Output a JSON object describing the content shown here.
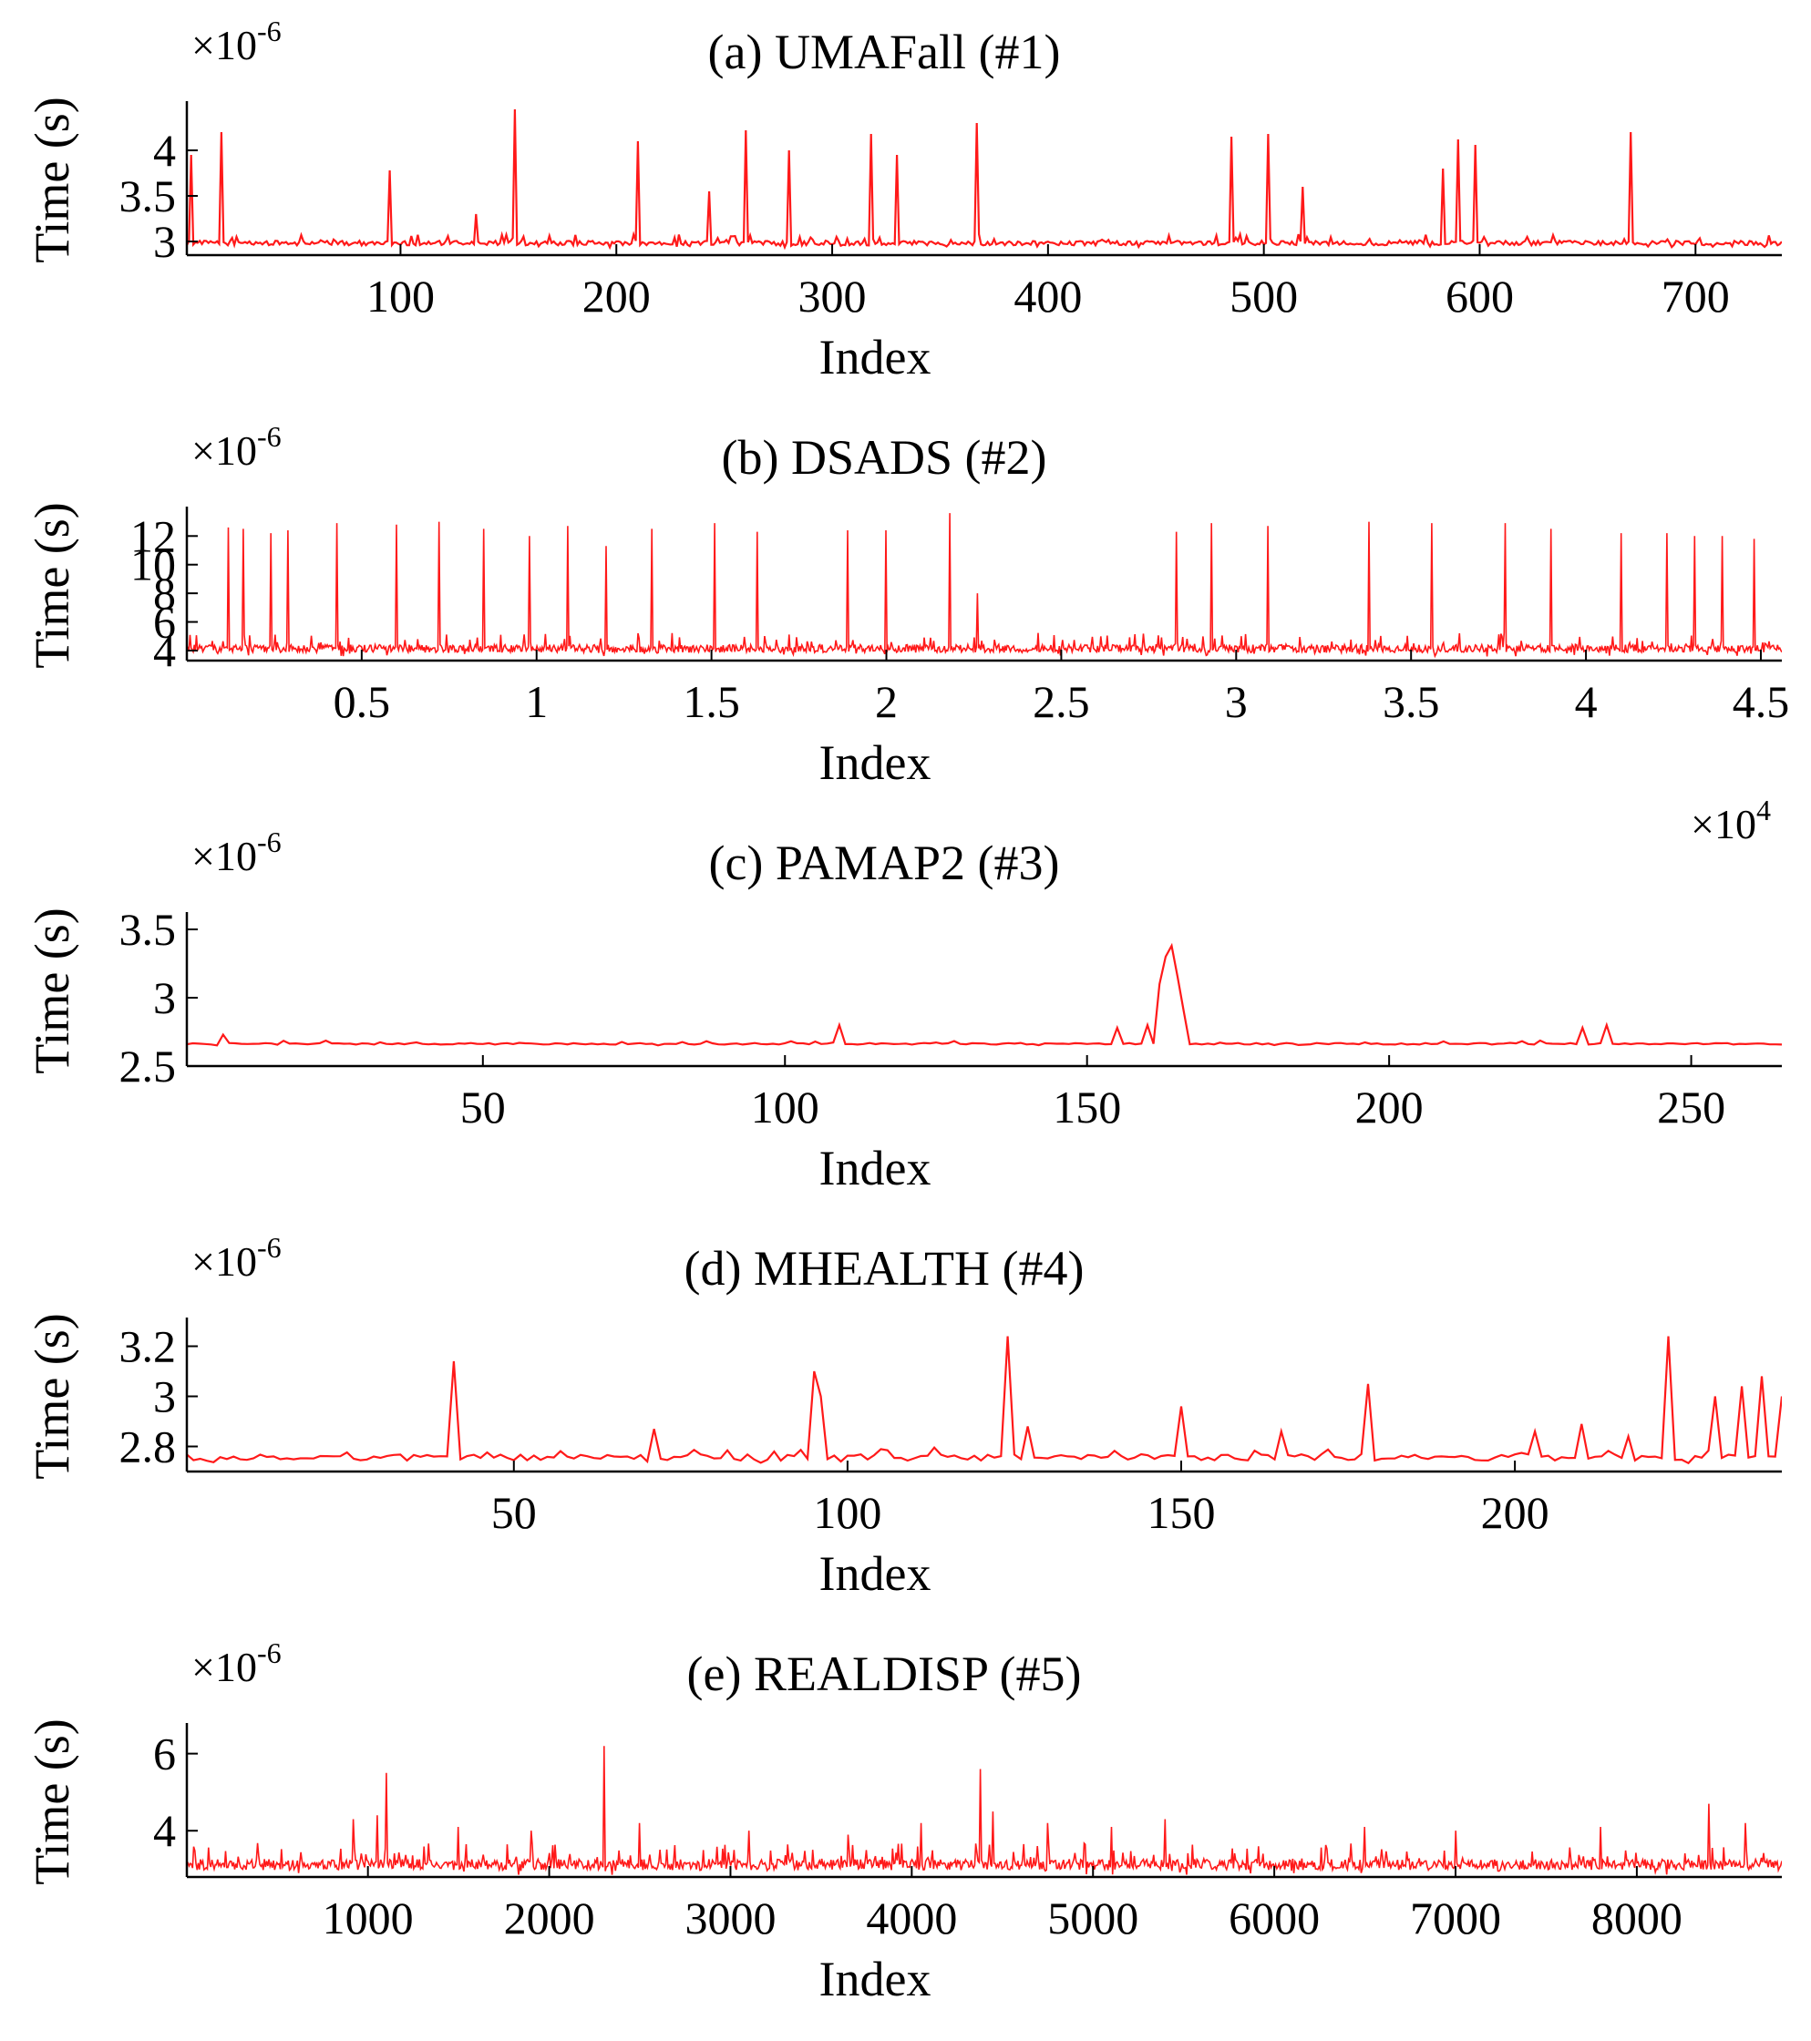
{
  "figure": {
    "series_color": "#ff0000",
    "axis_color": "#000000",
    "background": "#ffffff"
  },
  "chart_data": [
    {
      "type": "line",
      "title": "(a) UMAFall (#1)",
      "xlabel": "Index",
      "ylabel": "Time (s)",
      "y_exponent_label": "×10",
      "y_exponent": "-6",
      "x_exponent_label": null,
      "x_exponent": null,
      "xlim": [
        1,
        740
      ],
      "ylim": [
        2.85,
        4.5
      ],
      "xticks": [
        100,
        200,
        300,
        400,
        500,
        600,
        700
      ],
      "xtick_labels": [
        "100",
        "200",
        "300",
        "400",
        "500",
        "600",
        "700"
      ],
      "yticks": [
        3,
        3.5,
        4
      ],
      "ytick_labels": [
        "3",
        "3.5",
        "4"
      ],
      "n_points": 740,
      "baseline": 2.97,
      "noise": 0.05,
      "spikes": [
        [
          3,
          3.95
        ],
        [
          17,
          4.2
        ],
        [
          95,
          3.78
        ],
        [
          135,
          3.3
        ],
        [
          153,
          4.45
        ],
        [
          210,
          4.1
        ],
        [
          243,
          3.55
        ],
        [
          260,
          4.22
        ],
        [
          280,
          4.0
        ],
        [
          318,
          4.18
        ],
        [
          330,
          3.95
        ],
        [
          367,
          4.3
        ],
        [
          485,
          4.15
        ],
        [
          502,
          4.18
        ],
        [
          518,
          3.6
        ],
        [
          583,
          3.8
        ],
        [
          590,
          4.12
        ],
        [
          598,
          4.06
        ],
        [
          670,
          4.2
        ]
      ]
    },
    {
      "type": "line",
      "title": "(b) DSADS (#2)",
      "xlabel": "Index",
      "ylabel": "Time (s)",
      "y_exponent_label": "×10",
      "y_exponent": "-6",
      "x_exponent_label": "×10",
      "x_exponent": "4",
      "xlim": [
        1,
        45600
      ],
      "ylim": [
        3.3,
        13.8
      ],
      "xticks": [
        5000,
        10000,
        15000,
        20000,
        25000,
        30000,
        35000,
        40000,
        45000
      ],
      "xtick_labels": [
        "0.5",
        "1",
        "1.5",
        "2",
        "2.5",
        "3",
        "3.5",
        "4",
        "4.5"
      ],
      "yticks": [
        4,
        6,
        8,
        10,
        12
      ],
      "ytick_labels": [
        "4",
        "6",
        "8",
        "10",
        "12"
      ],
      "n_points": 1500,
      "baseline": 4.0,
      "noise": 0.55,
      "spikes": [
        [
          1200,
          12.6
        ],
        [
          1600,
          12.5
        ],
        [
          2400,
          12.2
        ],
        [
          4300,
          12.9
        ],
        [
          6000,
          12.8
        ],
        [
          7200,
          13.0
        ],
        [
          8500,
          12.5
        ],
        [
          9800,
          12.0
        ],
        [
          12000,
          11.3
        ],
        [
          13300,
          12.5
        ],
        [
          15100,
          12.9
        ],
        [
          16300,
          12.3
        ],
        [
          18900,
          12.4
        ],
        [
          20000,
          12.4
        ],
        [
          21800,
          13.6
        ],
        [
          22600,
          8.0
        ],
        [
          28300,
          12.3
        ],
        [
          29300,
          12.9
        ],
        [
          30900,
          12.7
        ],
        [
          33800,
          13.0
        ],
        [
          35600,
          12.9
        ],
        [
          37700,
          12.9
        ],
        [
          39000,
          12.5
        ],
        [
          41000,
          12.2
        ],
        [
          42300,
          12.2
        ],
        [
          43100,
          12.0
        ],
        [
          43900,
          12.0
        ],
        [
          44800,
          11.8
        ],
        [
          10900,
          12.7
        ],
        [
          2900,
          12.4
        ]
      ]
    },
    {
      "type": "line",
      "title": "(c) PAMAP2 (#3)",
      "xlabel": "Index",
      "ylabel": "Time (s)",
      "y_exponent_label": "×10",
      "y_exponent": "-6",
      "x_exponent_label": null,
      "x_exponent": null,
      "xlim": [
        1,
        265
      ],
      "ylim": [
        2.5,
        3.6
      ],
      "xticks": [
        50,
        100,
        150,
        200,
        250
      ],
      "xtick_labels": [
        "50",
        "100",
        "150",
        "200",
        "250"
      ],
      "yticks": [
        2.5,
        3,
        3.5
      ],
      "ytick_labels": [
        "2.5",
        "3",
        "3.5"
      ],
      "n_points": 265,
      "baseline": 2.66,
      "noise": 0.012,
      "spikes": [
        [
          7,
          2.73
        ],
        [
          109,
          2.8
        ],
        [
          155,
          2.78
        ],
        [
          160,
          2.8
        ],
        [
          162,
          3.1
        ],
        [
          163,
          3.3
        ],
        [
          164,
          3.38
        ],
        [
          165,
          3.15
        ],
        [
          166,
          2.9
        ],
        [
          232,
          2.78
        ],
        [
          236,
          2.8
        ]
      ]
    },
    {
      "type": "line",
      "title": "(d) MHEALTH (#4)",
      "xlabel": "Index",
      "ylabel": "Time (s)",
      "y_exponent_label": "×10",
      "y_exponent": "-6",
      "x_exponent_label": null,
      "x_exponent": null,
      "xlim": [
        1,
        240
      ],
      "ylim": [
        2.7,
        3.3
      ],
      "xticks": [
        50,
        100,
        150,
        200
      ],
      "xtick_labels": [
        "50",
        "100",
        "150",
        "200"
      ],
      "yticks": [
        2.8,
        3,
        3.2
      ],
      "ytick_labels": [
        "2.8",
        "3",
        "3.2"
      ],
      "n_points": 240,
      "baseline": 2.75,
      "noise": 0.025,
      "spikes": [
        [
          41,
          3.14
        ],
        [
          71,
          2.87
        ],
        [
          95,
          3.1
        ],
        [
          96,
          3.0
        ],
        [
          124,
          3.24
        ],
        [
          127,
          2.88
        ],
        [
          150,
          2.96
        ],
        [
          165,
          2.86
        ],
        [
          178,
          3.05
        ],
        [
          203,
          2.86
        ],
        [
          210,
          2.89
        ],
        [
          217,
          2.84
        ],
        [
          223,
          3.24
        ],
        [
          230,
          3.0
        ],
        [
          234,
          3.04
        ],
        [
          237,
          3.08
        ],
        [
          240,
          3.0
        ]
      ]
    },
    {
      "type": "line",
      "title": "(e) REALDISP (#5)",
      "xlabel": "Index",
      "ylabel": "Time (s)",
      "y_exponent_label": "×10",
      "y_exponent": "-6",
      "x_exponent_label": null,
      "x_exponent": null,
      "xlim": [
        1,
        8800
      ],
      "ylim": [
        2.8,
        6.7
      ],
      "xticks": [
        1000,
        2000,
        3000,
        4000,
        5000,
        6000,
        7000,
        8000
      ],
      "xtick_labels": [
        "1000",
        "2000",
        "3000",
        "4000",
        "5000",
        "6000",
        "7000",
        "8000"
      ],
      "yticks": [
        4,
        6
      ],
      "ytick_labels": [
        "4",
        "6"
      ],
      "n_points": 1400,
      "baseline": 3.05,
      "noise": 0.28,
      "spikes": [
        [
          920,
          4.3
        ],
        [
          1050,
          4.4
        ],
        [
          1100,
          5.5
        ],
        [
          1500,
          4.1
        ],
        [
          1900,
          4.0
        ],
        [
          2300,
          6.2
        ],
        [
          2500,
          4.2
        ],
        [
          3100,
          4.0
        ],
        [
          3650,
          3.9
        ],
        [
          4050,
          4.2
        ],
        [
          4380,
          5.6
        ],
        [
          4450,
          4.5
        ],
        [
          4750,
          4.2
        ],
        [
          5100,
          4.1
        ],
        [
          5400,
          4.3
        ],
        [
          6500,
          4.1
        ],
        [
          7000,
          4.0
        ],
        [
          7800,
          4.1
        ],
        [
          8400,
          4.7
        ],
        [
          8600,
          4.2
        ]
      ]
    }
  ]
}
